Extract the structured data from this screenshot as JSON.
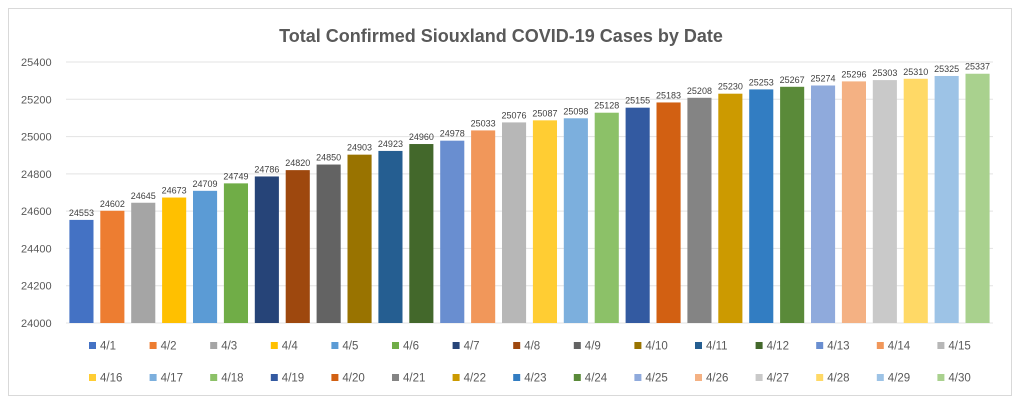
{
  "chart_data": {
    "type": "bar",
    "title": "Total Confirmed Siouxland COVID-19 Cases by Date",
    "xlabel": "",
    "ylabel": "",
    "ylim": [
      24000,
      25400
    ],
    "yticks": [
      "24000",
      "24200",
      "24400",
      "24600",
      "24800",
      "25000",
      "25200",
      "25400"
    ],
    "grid": true,
    "legend_position": "bottom",
    "categories": [
      "4/1",
      "4/2",
      "4/3",
      "4/4",
      "4/5",
      "4/6",
      "4/7",
      "4/8",
      "4/9",
      "4/10",
      "4/11",
      "4/12",
      "4/13",
      "4/14",
      "4/15",
      "4/16",
      "4/17",
      "4/18",
      "4/19",
      "4/20",
      "4/21",
      "4/22",
      "4/23",
      "4/24",
      "4/25",
      "4/26",
      "4/27",
      "4/28",
      "4/29",
      "4/30"
    ],
    "values": [
      24553,
      24602,
      24645,
      24673,
      24709,
      24749,
      24786,
      24820,
      24850,
      24903,
      24923,
      24960,
      24978,
      25033,
      25076,
      25087,
      25098,
      25128,
      25155,
      25183,
      25208,
      25230,
      25253,
      25267,
      25274,
      25296,
      25303,
      25310,
      25325,
      25337
    ],
    "colors": [
      "#4472c4",
      "#ed7d31",
      "#a5a5a5",
      "#ffc000",
      "#5b9bd5",
      "#70ad47",
      "#264478",
      "#9e480e",
      "#636363",
      "#997300",
      "#255e91",
      "#43682b",
      "#698ed0",
      "#f1975a",
      "#b7b7b7",
      "#ffcd33",
      "#7cafdd",
      "#8cc168",
      "#335aa1",
      "#d26012",
      "#848484",
      "#cc9a00",
      "#327dc2",
      "#5a8a39",
      "#8faadc",
      "#f4b183",
      "#c9c9c9",
      "#ffd966",
      "#9dc3e6",
      "#a9d18e"
    ]
  }
}
